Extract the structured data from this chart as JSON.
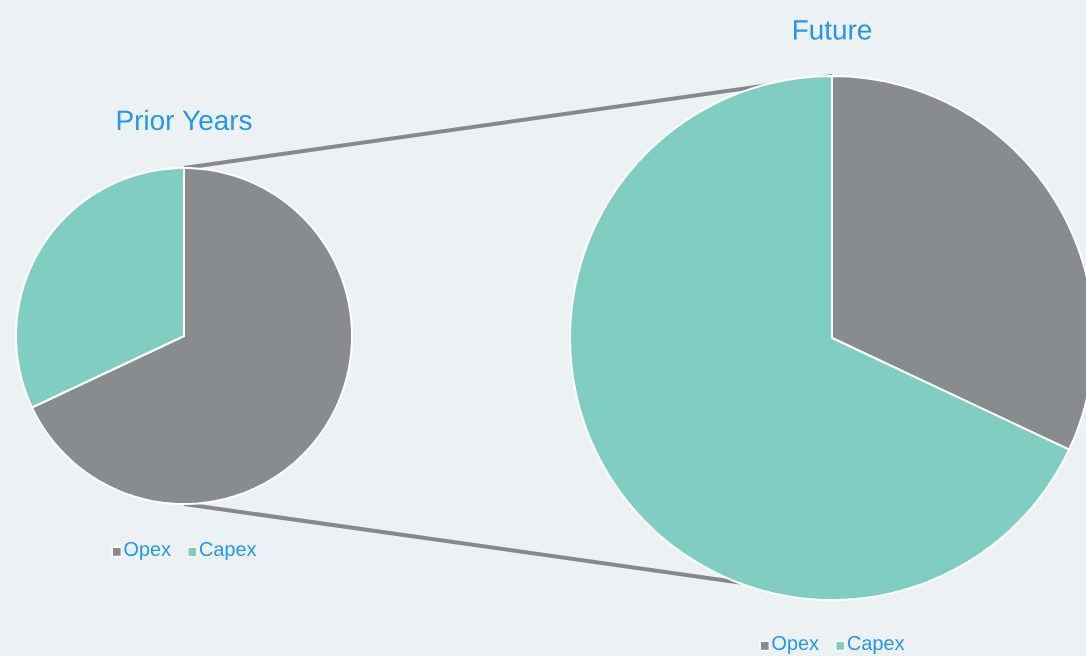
{
  "chart_data": [
    {
      "type": "pie",
      "title": "Prior Years",
      "categories": [
        "Opex",
        "Capex"
      ],
      "values": [
        68,
        32
      ],
      "colors": [
        "#898c8e",
        "#80cdc1"
      ],
      "legend": "bottom"
    },
    {
      "type": "pie",
      "title": "Future",
      "categories": [
        "Opex",
        "Capex"
      ],
      "values": [
        32,
        68
      ],
      "colors": [
        "#898c8e",
        "#80cdc1"
      ],
      "legend": "bottom"
    }
  ]
}
